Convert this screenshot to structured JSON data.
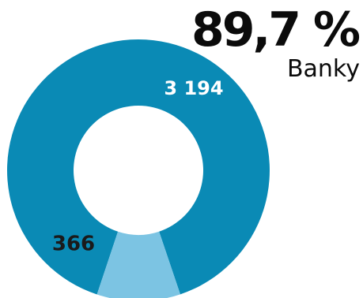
{
  "headline": {
    "value": "89,7 %",
    "label": "Banky"
  },
  "chart_data": {
    "type": "pie",
    "donut": true,
    "slices": [
      {
        "label": "3 194",
        "value": 3194,
        "color": "#0a8ab5",
        "label_color": "#ffffff"
      },
      {
        "label": "366",
        "value": 366,
        "color": "#7cc4e3",
        "label_color": "#1a1a1a"
      }
    ],
    "legend": "none"
  }
}
